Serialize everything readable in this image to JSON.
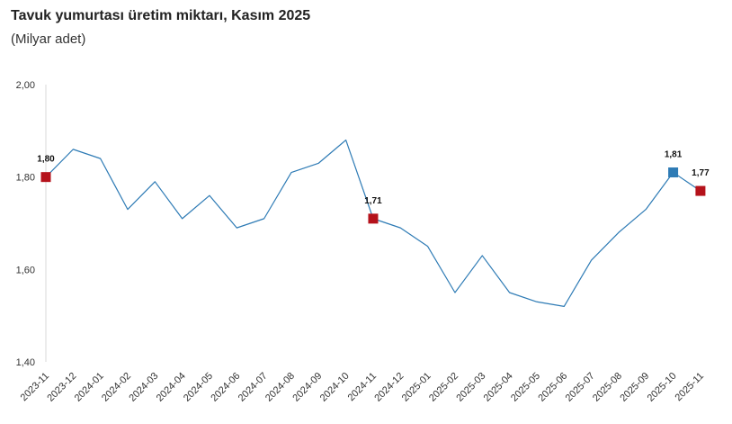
{
  "title": "Tavuk yumurtası üretim miktarı, Kasım 2025",
  "subtitle": "(Milyar adet)",
  "chart_data": {
    "type": "line",
    "title": "Tavuk yumurtası üretim miktarı, Kasım 2025",
    "subtitle": "(Milyar adet)",
    "xlabel": "",
    "ylabel": "",
    "categories": [
      "2023-11",
      "2023-12",
      "2024-01",
      "2024-02",
      "2024-03",
      "2024-04",
      "2024-05",
      "2024-06",
      "2024-07",
      "2024-08",
      "2024-09",
      "2024-10",
      "2024-11",
      "2024-12",
      "2025-01",
      "2025-02",
      "2025-03",
      "2025-04",
      "2025-05",
      "2025-06",
      "2025-07",
      "2025-08",
      "2025-09",
      "2025-10",
      "2025-11"
    ],
    "series": [
      {
        "values": [
          1.8,
          1.86,
          1.84,
          1.73,
          1.79,
          1.71,
          1.76,
          1.69,
          1.71,
          1.81,
          1.83,
          1.88,
          1.71,
          1.69,
          1.65,
          1.55,
          1.63,
          1.55,
          1.53,
          1.52,
          1.62,
          1.68,
          1.73,
          1.81,
          1.77
        ]
      }
    ],
    "ylim": [
      1.4,
      2.0
    ],
    "yticks": [
      "1,40",
      "1,60",
      "1,80",
      "2,00"
    ],
    "ytick_values": [
      1.4,
      1.6,
      1.8,
      2.0
    ],
    "grid": false,
    "legend": "none",
    "markers": [
      {
        "index": 0,
        "label": "1,80",
        "color": "#B5121B"
      },
      {
        "index": 12,
        "label": "1,71",
        "color": "#B5121B"
      },
      {
        "index": 23,
        "label": "1,81",
        "color": "#2E7BB5"
      },
      {
        "index": 24,
        "label": "1,77",
        "color": "#B5121B"
      }
    ],
    "line_color": "#2E7BB5",
    "axis_color": "#D9D9D9"
  }
}
